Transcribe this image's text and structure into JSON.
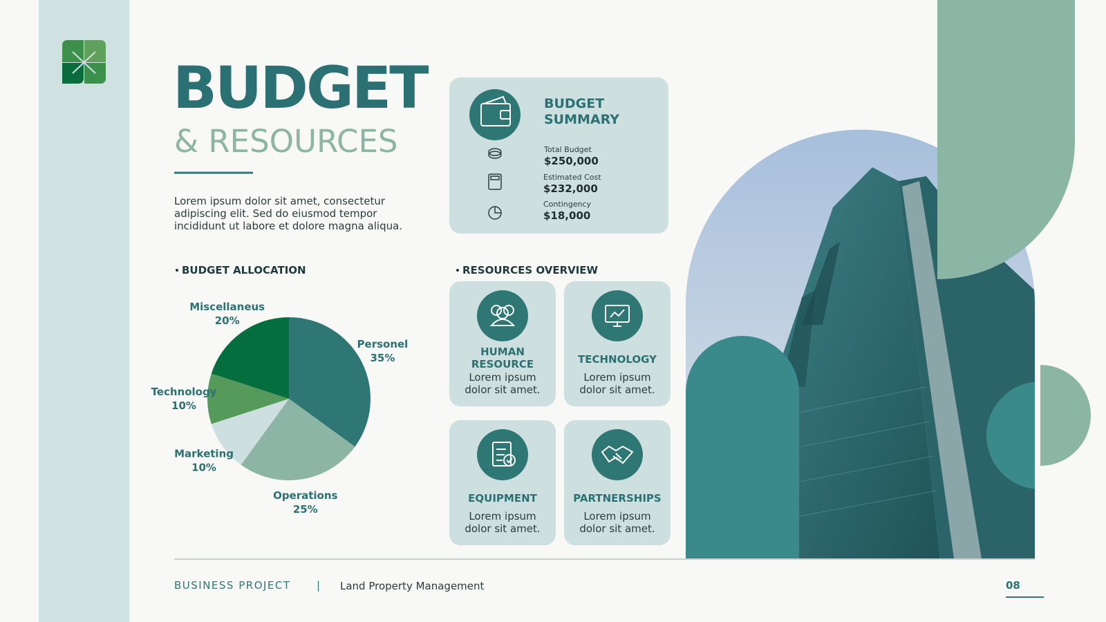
{
  "header": {
    "title": "BUDGET",
    "subtitle": "& RESOURCES",
    "description": "Lorem ipsum dolor sit amet, consectetur adipiscing elit. Sed do eiusmod tempor incididunt ut labore et dolore magna aliqua."
  },
  "summary": {
    "title": "BUDGET SUMMARY",
    "items": [
      {
        "label": "Total Budget",
        "value": "$250,000"
      },
      {
        "label": "Estimated Cost",
        "value": "$232,000"
      },
      {
        "label": "Contingency",
        "value": "$18,000"
      }
    ]
  },
  "chart_data": {
    "type": "pie",
    "title": "BUDGET ALLOCATION",
    "categories": [
      "Personel",
      "Operations",
      "Marketing",
      "Technology",
      "Miscellaneus"
    ],
    "values": [
      35,
      25,
      10,
      10,
      20
    ],
    "value_labels": [
      "35%",
      "25%",
      "10%",
      "10%",
      "20%"
    ],
    "colors": [
      "#2e7775",
      "#8db5a5",
      "#cde0df",
      "#559a5a",
      "#056e3f"
    ]
  },
  "resources": {
    "title": "RESOURCES OVERVIEW",
    "items": [
      {
        "title": "HUMAN RESOURCE",
        "text": "Lorem ipsum dolor sit amet."
      },
      {
        "title": "TECHNOLOGY",
        "text": "Lorem ipsum dolor sit amet."
      },
      {
        "title": "EQUIPMENT",
        "text": "Lorem ipsum dolor sit amet."
      },
      {
        "title": "PARTNERSHIPS",
        "text": "Lorem ipsum dolor sit amet."
      }
    ]
  },
  "footer": {
    "project": "BUSINESS PROJECT",
    "separator": "|",
    "subtitle": "Land Property Management",
    "page": "08"
  }
}
